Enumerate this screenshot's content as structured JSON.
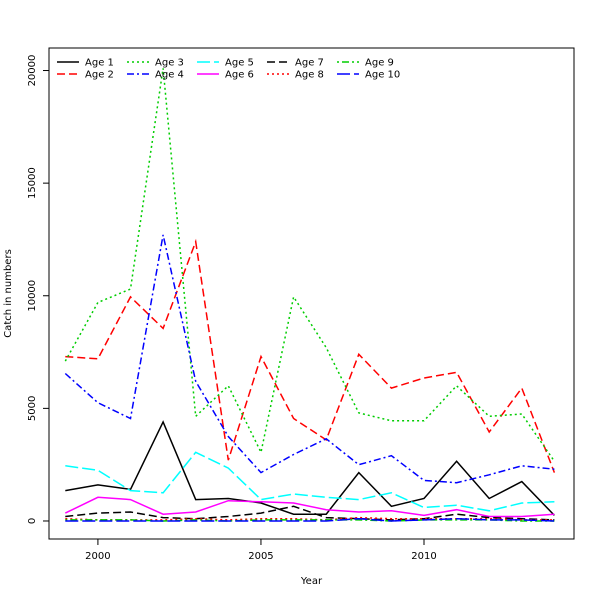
{
  "chart_data": {
    "type": "line",
    "title": "",
    "xlabel": "Year",
    "ylabel": "Catch in numbers",
    "xlim": [
      1998.5,
      2014.6
    ],
    "ylim": [
      -800,
      21000
    ],
    "xticks": [
      2000,
      2005,
      2010
    ],
    "yticks": [
      0,
      5000,
      10000,
      15000,
      20000
    ],
    "grid": false,
    "legend_position": "top-left",
    "x": [
      1999,
      2000,
      2001,
      2002,
      2003,
      2004,
      2005,
      2006,
      2007,
      2008,
      2009,
      2010,
      2011,
      2012,
      2013,
      2014
    ],
    "series": [
      {
        "name": "Age 1",
        "color": "#000000",
        "dash": "solid",
        "values": [
          1350,
          1600,
          1400,
          4400,
          950,
          1000,
          800,
          300,
          300,
          2150,
          650,
          1000,
          2650,
          1000,
          1750,
          250
        ]
      },
      {
        "name": "Age 2",
        "color": "#ff0000",
        "dash": "dashed",
        "values": [
          7300,
          7200,
          9950,
          8550,
          12400,
          2700,
          7300,
          4550,
          3600,
          7400,
          5900,
          6350,
          6600,
          3950,
          5900,
          2150
        ]
      },
      {
        "name": "Age 3",
        "color": "#00cd00",
        "dash": "dotted",
        "values": [
          7100,
          9700,
          10300,
          20100,
          4650,
          6000,
          3050,
          9950,
          7700,
          4800,
          4450,
          4450,
          6000,
          4650,
          4750,
          2650
        ]
      },
      {
        "name": "Age 4",
        "color": "#0000ff",
        "dash": "dashdot",
        "values": [
          6550,
          5250,
          4550,
          12700,
          6200,
          3750,
          2150,
          2950,
          3650,
          2500,
          2900,
          1800,
          1700,
          2050,
          2450,
          2300
        ]
      },
      {
        "name": "Age 5",
        "color": "#00ffff",
        "dash": "longdash",
        "values": [
          2450,
          2250,
          1350,
          1250,
          3050,
          2350,
          950,
          1200,
          1050,
          950,
          1250,
          600,
          700,
          450,
          800,
          850
        ]
      },
      {
        "name": "Age 6",
        "color": "#ff00ff",
        "dash": "solid",
        "values": [
          350,
          1050,
          950,
          300,
          400,
          900,
          850,
          800,
          500,
          400,
          450,
          250,
          500,
          200,
          200,
          300
        ]
      },
      {
        "name": "Age 7",
        "color": "#000000",
        "dash": "dashed",
        "values": [
          200,
          350,
          400,
          150,
          100,
          200,
          350,
          650,
          150,
          100,
          50,
          100,
          300,
          150,
          100,
          50
        ]
      },
      {
        "name": "Age 8",
        "color": "#ff0000",
        "dash": "dotted",
        "values": [
          100,
          50,
          50,
          50,
          100,
          50,
          100,
          100,
          50,
          150,
          100,
          100,
          100,
          100,
          50,
          50
        ]
      },
      {
        "name": "Age 9",
        "color": "#00cd00",
        "dash": "dotdash",
        "values": [
          50,
          50,
          50,
          0,
          50,
          0,
          50,
          50,
          50,
          50,
          0,
          50,
          50,
          50,
          0,
          0
        ]
      },
      {
        "name": "Age 10",
        "color": "#0000ff",
        "dash": "longdash",
        "values": [
          0,
          0,
          0,
          0,
          0,
          0,
          0,
          0,
          0,
          100,
          0,
          50,
          100,
          50,
          50,
          0
        ]
      }
    ]
  }
}
